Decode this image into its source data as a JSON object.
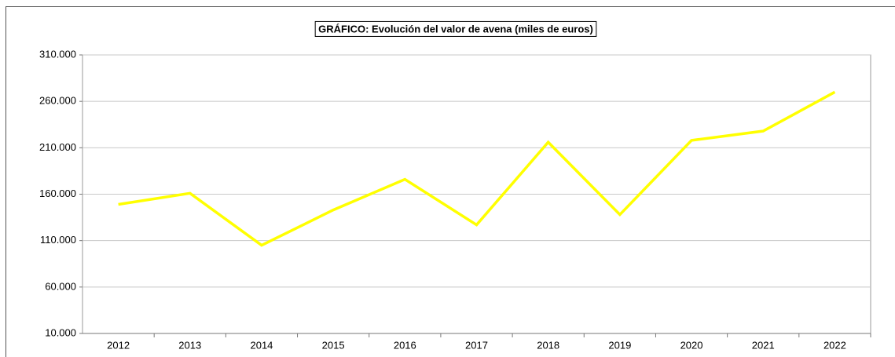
{
  "chart_data": {
    "type": "line",
    "title": "GRÁFICO: Evolución del valor de avena (miles de euros)",
    "categories": [
      "2012",
      "2013",
      "2014",
      "2015",
      "2016",
      "2017",
      "2018",
      "2019",
      "2020",
      "2021",
      "2022"
    ],
    "series": [
      {
        "color": "#ffff00",
        "values": [
          149000,
          161000,
          105000,
          143000,
          176000,
          127000,
          216000,
          138000,
          218000,
          228000,
          270000
        ]
      }
    ],
    "ylim": [
      10000,
      310000
    ],
    "yticks": [
      {
        "value": 10000,
        "label": "10.000"
      },
      {
        "value": 60000,
        "label": "60.000"
      },
      {
        "value": 110000,
        "label": "110.000"
      },
      {
        "value": 160000,
        "label": "160.000"
      },
      {
        "value": 210000,
        "label": "210.000"
      },
      {
        "value": 260000,
        "label": "260.000"
      },
      {
        "value": 310000,
        "label": "310.000"
      }
    ],
    "grid": true
  }
}
